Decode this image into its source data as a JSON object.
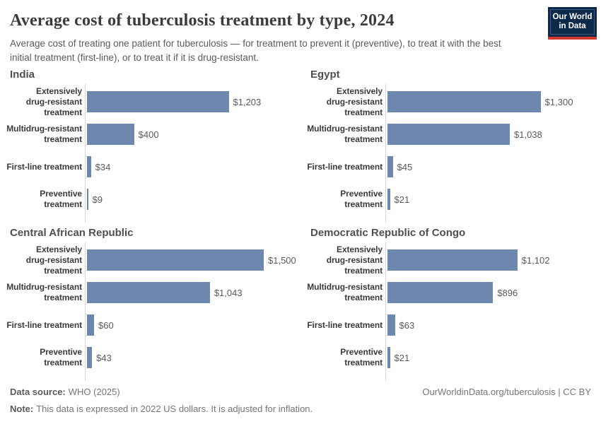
{
  "header": {
    "title": "Average cost of tuberculosis treatment by type, 2024",
    "subtitle": "Average cost of treating one patient for tuberculosis — for treatment to prevent it (preventive), to treat it with the best initial treatment (first-line), or to treat it if it is drug-resistant.",
    "logo_line1": "Our World",
    "logo_line2": "in Data"
  },
  "chart_data": {
    "type": "bar",
    "orientation": "horizontal",
    "title": "Average cost of tuberculosis treatment by type, 2024",
    "categories": [
      "Extensively drug-resistant treatment",
      "Multidrug-resistant treatment",
      "First-line treatment",
      "Preventive treatment"
    ],
    "categories_display": [
      "Extensively\ndrug-resistant\ntreatment",
      "Multidrug-resistant\ntreatment",
      "First-line treatment",
      "Preventive\ntreatment"
    ],
    "panels": [
      {
        "title": "India",
        "values": [
          1203,
          400,
          34,
          9
        ],
        "value_labels": [
          "$1,203",
          "$400",
          "$34",
          "$9"
        ]
      },
      {
        "title": "Egypt",
        "values": [
          1300,
          1038,
          45,
          21
        ],
        "value_labels": [
          "$1,300",
          "$1,038",
          "$45",
          "$21"
        ]
      },
      {
        "title": "Central African Republic",
        "values": [
          1500,
          1043,
          60,
          43
        ],
        "value_labels": [
          "$1,500",
          "$1,043",
          "$60",
          "$43"
        ]
      },
      {
        "title": "Democratic Republic of Congo",
        "values": [
          1102,
          896,
          63,
          21
        ],
        "value_labels": [
          "$1,102",
          "$896",
          "$63",
          "$21"
        ]
      }
    ],
    "xlabel": "",
    "ylabel": "",
    "xlim": [
      0,
      1500
    ],
    "xmax": 1500,
    "grid": false,
    "legend": false,
    "bar_color": "#6d87ae",
    "axis_color": "#d7d7d7"
  },
  "footer": {
    "source_label": "Data source:",
    "source_text": "WHO (2025)",
    "note_label": "Note:",
    "note_text": "This data is expressed in 2022 US dollars. It is adjusted for inflation.",
    "credit": "OurWorldinData.org/tuberculosis | CC BY"
  },
  "colors": {
    "bar": "#6d87ae",
    "logo_navy": "#0d2949",
    "logo_red": "#d33a2f"
  }
}
